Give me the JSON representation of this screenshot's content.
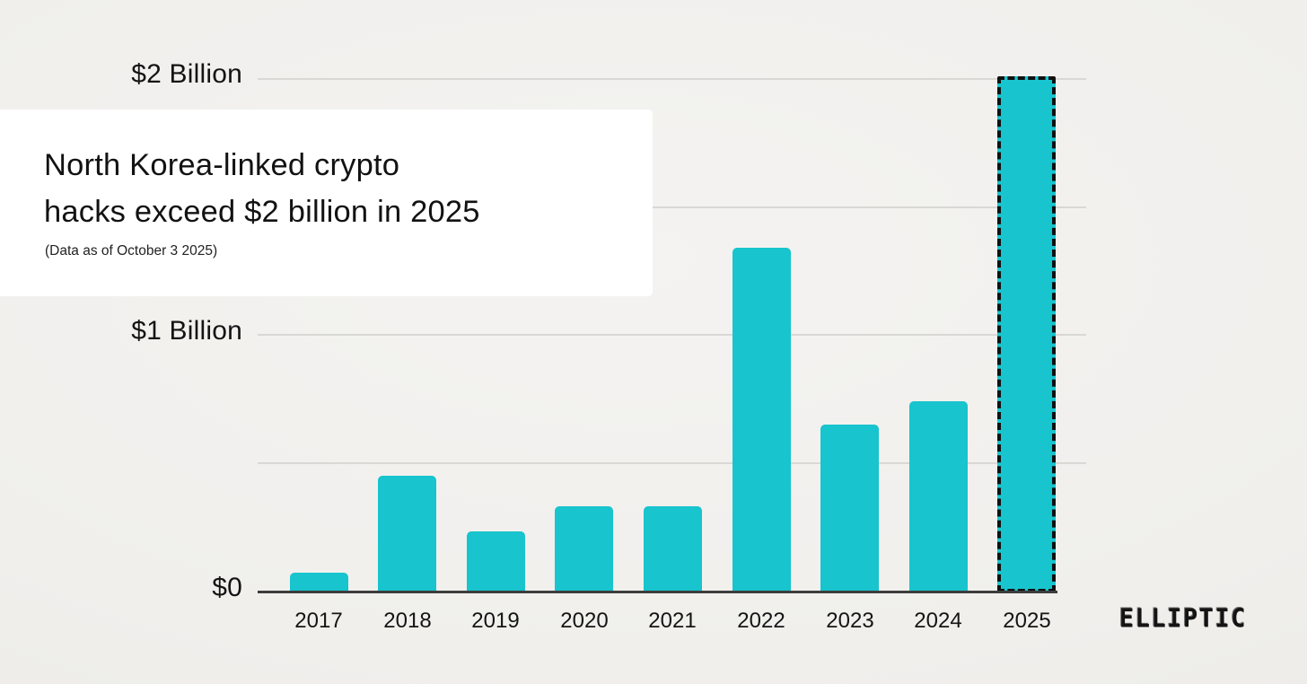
{
  "header": {
    "title_line1": "North Korea-linked crypto",
    "title_line2": "hacks exceed $2 billion in 2025",
    "subtitle": "(Data as of October 3 2025)"
  },
  "brand": {
    "logo_text": "ELLIPTIC"
  },
  "chart_data": {
    "type": "bar",
    "title": "North Korea-linked crypto hacks exceed $2 billion in 2025",
    "subtitle": "(Data as of October 3 2025)",
    "categories": [
      "2017",
      "2018",
      "2019",
      "2020",
      "2021",
      "2022",
      "2023",
      "2024",
      "2025"
    ],
    "values": [
      0.07,
      0.45,
      0.23,
      0.33,
      0.33,
      1.34,
      0.65,
      0.74,
      2.01
    ],
    "unit": "billions USD",
    "highlighted_category": "2025",
    "y_axis_ticks": [
      "$2 Billion",
      "$1 Billion",
      "$0"
    ],
    "ylim": [
      0,
      2.1
    ],
    "gridlines_billions": [
      0.5,
      1.0,
      1.5,
      2.0
    ],
    "grid": "on",
    "legend": "none",
    "bar_color": "#18c4cd",
    "highlight_border_color": "#101010",
    "xlabel": "",
    "ylabel": ""
  }
}
